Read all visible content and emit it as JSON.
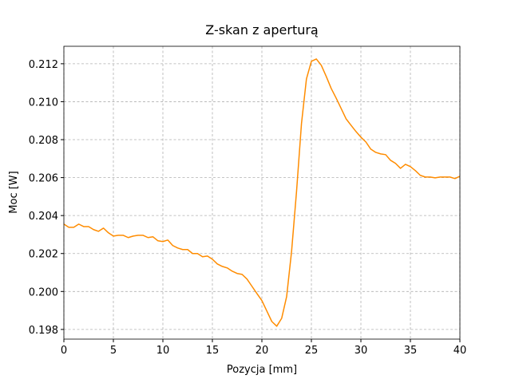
{
  "chart_data": {
    "type": "line",
    "title": "Z-skan z aperturą",
    "xlabel": "Pozycja [mm]",
    "ylabel": "Moc [W]",
    "x": [
      0,
      0.5,
      1,
      1.5,
      2,
      2.5,
      3,
      3.5,
      4,
      4.5,
      5,
      5.5,
      6,
      6.5,
      7,
      7.5,
      8,
      8.5,
      9,
      9.5,
      10,
      10.5,
      11,
      11.5,
      12,
      12.5,
      13,
      13.5,
      14,
      14.5,
      15,
      15.5,
      16,
      16.5,
      17,
      17.5,
      18,
      18.5,
      19,
      19.5,
      20,
      20.5,
      21,
      21.5,
      22,
      22.5,
      23,
      23.5,
      24,
      24.5,
      25,
      25.5,
      26,
      26.5,
      27,
      27.5,
      28,
      28.5,
      29,
      29.5,
      30,
      30.5,
      31,
      31.5,
      32,
      32.5,
      33,
      33.5,
      34,
      34.5,
      35,
      35.5,
      36,
      36.5,
      37,
      37.5,
      38,
      38.5,
      39,
      39.5,
      40
    ],
    "series": [
      {
        "color": "#ff8c00",
        "values": [
          0.20355,
          0.20338,
          0.20338,
          0.20355,
          0.20342,
          0.20342,
          0.20326,
          0.20317,
          0.20334,
          0.20309,
          0.20292,
          0.20296,
          0.20296,
          0.20284,
          0.20292,
          0.20296,
          0.20296,
          0.20284,
          0.20288,
          0.20267,
          0.20263,
          0.20271,
          0.20242,
          0.20229,
          0.20221,
          0.20221,
          0.202,
          0.202,
          0.20183,
          0.20187,
          0.2017,
          0.20145,
          0.20132,
          0.20124,
          0.20107,
          0.20095,
          0.2009,
          0.20065,
          0.20027,
          0.19989,
          0.19952,
          0.19897,
          0.19842,
          0.19817,
          0.19859,
          0.19973,
          0.20212,
          0.20527,
          0.20885,
          0.2112,
          0.21213,
          0.21225,
          0.21192,
          0.21133,
          0.2107,
          0.21019,
          0.20965,
          0.2091,
          0.20876,
          0.20843,
          0.20813,
          0.20788,
          0.2075,
          0.20733,
          0.20725,
          0.20721,
          0.20691,
          0.20675,
          0.20649,
          0.2067,
          0.20658,
          0.20637,
          0.20612,
          0.20603,
          0.20603,
          0.20599,
          0.20603,
          0.20603,
          0.20603,
          0.20595,
          0.20607
        ]
      }
    ],
    "xlim": [
      0,
      40
    ],
    "xticks": [
      0,
      5,
      10,
      15,
      20,
      25,
      30,
      35,
      40
    ],
    "ylim": [
      0.19749,
      0.21292
    ],
    "yticks": [
      0.198,
      {
        "value": 0.2,
        "label": "0.200"
      },
      0.202,
      0.204,
      0.206,
      0.208,
      {
        "value": 0.21,
        "label": "0.210"
      },
      0.212
    ],
    "grid": true
  }
}
